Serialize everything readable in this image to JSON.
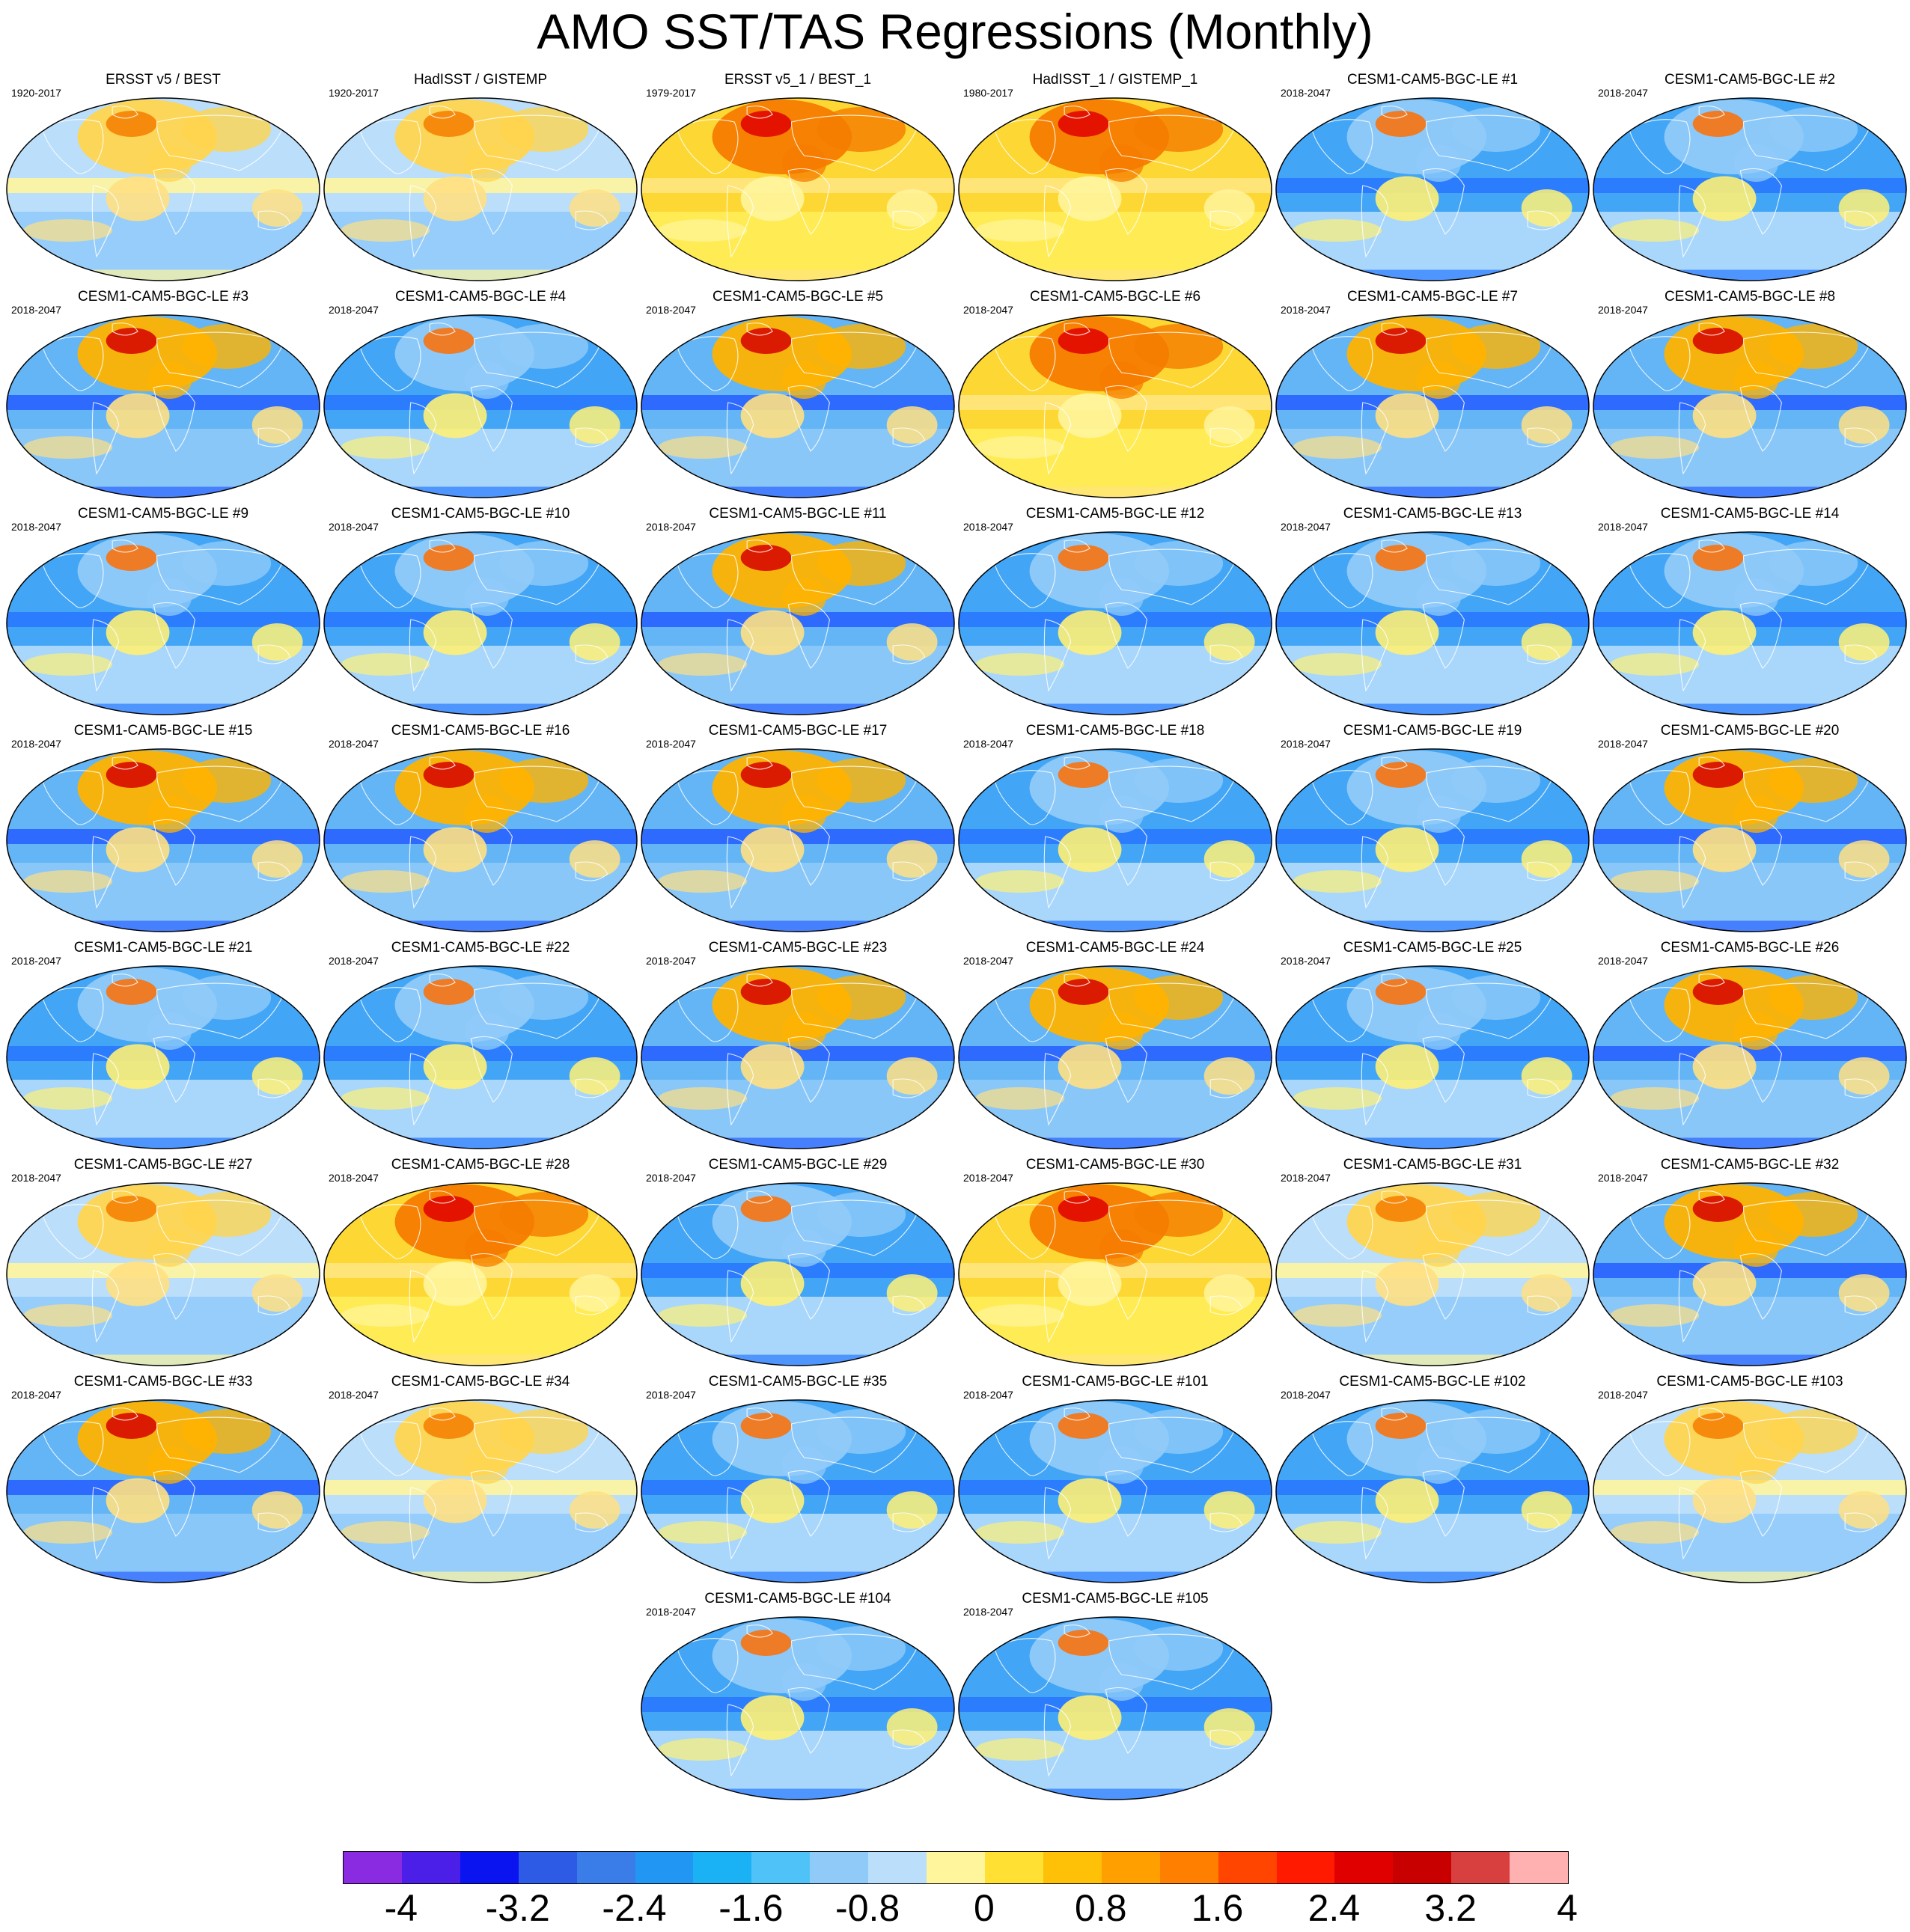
{
  "title": "AMO SST/TAS Regressions (Monthly)",
  "panels": [
    {
      "title": "ERSST v5 / BEST",
      "years": "1920-2017",
      "map": "warm"
    },
    {
      "title": "HadISST / GISTEMP",
      "years": "1920-2017",
      "map": "warm"
    },
    {
      "title": "ERSST v5_1 / BEST_1",
      "years": "1979-2017",
      "map": "hot"
    },
    {
      "title": "HadISST_1 / GISTEMP_1",
      "years": "1980-2017",
      "map": "hot"
    },
    {
      "title": "CESM1-CAM5-BGC-LE #1",
      "years": "2018-2047",
      "map": "cool"
    },
    {
      "title": "CESM1-CAM5-BGC-LE #2",
      "years": "2018-2047",
      "map": "cool"
    },
    {
      "title": "CESM1-CAM5-BGC-LE #3",
      "years": "2018-2047",
      "map": "mixed"
    },
    {
      "title": "CESM1-CAM5-BGC-LE #4",
      "years": "2018-2047",
      "map": "cool"
    },
    {
      "title": "CESM1-CAM5-BGC-LE #5",
      "years": "2018-2047",
      "map": "mixed"
    },
    {
      "title": "CESM1-CAM5-BGC-LE #6",
      "years": "2018-2047",
      "map": "hot"
    },
    {
      "title": "CESM1-CAM5-BGC-LE #7",
      "years": "2018-2047",
      "map": "mixed"
    },
    {
      "title": "CESM1-CAM5-BGC-LE #8",
      "years": "2018-2047",
      "map": "mixed"
    },
    {
      "title": "CESM1-CAM5-BGC-LE #9",
      "years": "2018-2047",
      "map": "cool"
    },
    {
      "title": "CESM1-CAM5-BGC-LE #10",
      "years": "2018-2047",
      "map": "cool"
    },
    {
      "title": "CESM1-CAM5-BGC-LE #11",
      "years": "2018-2047",
      "map": "mixed"
    },
    {
      "title": "CESM1-CAM5-BGC-LE #12",
      "years": "2018-2047",
      "map": "cool"
    },
    {
      "title": "CESM1-CAM5-BGC-LE #13",
      "years": "2018-2047",
      "map": "cool"
    },
    {
      "title": "CESM1-CAM5-BGC-LE #14",
      "years": "2018-2047",
      "map": "cool"
    },
    {
      "title": "CESM1-CAM5-BGC-LE #15",
      "years": "2018-2047",
      "map": "mixed"
    },
    {
      "title": "CESM1-CAM5-BGC-LE #16",
      "years": "2018-2047",
      "map": "mixed"
    },
    {
      "title": "CESM1-CAM5-BGC-LE #17",
      "years": "2018-2047",
      "map": "mixed"
    },
    {
      "title": "CESM1-CAM5-BGC-LE #18",
      "years": "2018-2047",
      "map": "cool"
    },
    {
      "title": "CESM1-CAM5-BGC-LE #19",
      "years": "2018-2047",
      "map": "cool"
    },
    {
      "title": "CESM1-CAM5-BGC-LE #20",
      "years": "2018-2047",
      "map": "mixed"
    },
    {
      "title": "CESM1-CAM5-BGC-LE #21",
      "years": "2018-2047",
      "map": "cool"
    },
    {
      "title": "CESM1-CAM5-BGC-LE #22",
      "years": "2018-2047",
      "map": "cool"
    },
    {
      "title": "CESM1-CAM5-BGC-LE #23",
      "years": "2018-2047",
      "map": "mixed"
    },
    {
      "title": "CESM1-CAM5-BGC-LE #24",
      "years": "2018-2047",
      "map": "mixed"
    },
    {
      "title": "CESM1-CAM5-BGC-LE #25",
      "years": "2018-2047",
      "map": "cool"
    },
    {
      "title": "CESM1-CAM5-BGC-LE #26",
      "years": "2018-2047",
      "map": "mixed"
    },
    {
      "title": "CESM1-CAM5-BGC-LE #27",
      "years": "2018-2047",
      "map": "warm"
    },
    {
      "title": "CESM1-CAM5-BGC-LE #28",
      "years": "2018-2047",
      "map": "hot"
    },
    {
      "title": "CESM1-CAM5-BGC-LE #29",
      "years": "2018-2047",
      "map": "cool"
    },
    {
      "title": "CESM1-CAM5-BGC-LE #30",
      "years": "2018-2047",
      "map": "hot"
    },
    {
      "title": "CESM1-CAM5-BGC-LE #31",
      "years": "2018-2047",
      "map": "warm"
    },
    {
      "title": "CESM1-CAM5-BGC-LE #32",
      "years": "2018-2047",
      "map": "mixed"
    },
    {
      "title": "CESM1-CAM5-BGC-LE #33",
      "years": "2018-2047",
      "map": "mixed"
    },
    {
      "title": "CESM1-CAM5-BGC-LE #34",
      "years": "2018-2047",
      "map": "warm"
    },
    {
      "title": "CESM1-CAM5-BGC-LE #35",
      "years": "2018-2047",
      "map": "cool"
    },
    {
      "title": "CESM1-CAM5-BGC-LE #101",
      "years": "2018-2047",
      "map": "cool"
    },
    {
      "title": "CESM1-CAM5-BGC-LE #102",
      "years": "2018-2047",
      "map": "cool"
    },
    {
      "title": "CESM1-CAM5-BGC-LE #103",
      "years": "2018-2047",
      "map": "warm"
    },
    {
      "title": "CESM1-CAM5-BGC-LE #104",
      "years": "2018-2047",
      "map": "cool"
    },
    {
      "title": "CESM1-CAM5-BGC-LE #105",
      "years": "2018-2047",
      "map": "cool"
    }
  ],
  "map_palettes": {
    "hot": {
      "ocean": "#fdd835",
      "north": "#f57c00",
      "core": "#e00000",
      "band": "#ffe57f",
      "south": "#ffee58",
      "tropic": "#fff59d"
    },
    "warm": {
      "ocean": "#bbdefb",
      "north": "#ffd54f",
      "core": "#f57c00",
      "band": "#fff59d",
      "south": "#90caf9",
      "tropic": "#ffe082"
    },
    "mixed": {
      "ocean": "#64b5f6",
      "north": "#ffb300",
      "core": "#d50000",
      "band": "#2962ff",
      "south": "#90caf9",
      "tropic": "#ffe082"
    },
    "cool": {
      "ocean": "#42a5f5",
      "north": "#90caf9",
      "core": "#ff6d00",
      "band": "#2979ff",
      "south": "#bbdefb",
      "tropic": "#fff176"
    }
  },
  "colorbar": {
    "colors": [
      "#8a2be2",
      "#4b1fe8",
      "#0a14f0",
      "#2d5be6",
      "#3b7de8",
      "#2196f3",
      "#1ab2f5",
      "#4fc3f7",
      "#90caf9",
      "#bbdefb",
      "#fff59d",
      "#ffe033",
      "#ffc107",
      "#ffa000",
      "#ff8000",
      "#ff4500",
      "#ff1a00",
      "#e00000",
      "#c80000",
      "#d84040",
      "#ffb0b0"
    ],
    "labels": [
      "-4",
      "-3.2",
      "-2.4",
      "-1.6",
      "-0.8",
      "0",
      "0.8",
      "1.6",
      "2.4",
      "3.2",
      "4"
    ],
    "min": -4.4,
    "max": 4.4
  }
}
